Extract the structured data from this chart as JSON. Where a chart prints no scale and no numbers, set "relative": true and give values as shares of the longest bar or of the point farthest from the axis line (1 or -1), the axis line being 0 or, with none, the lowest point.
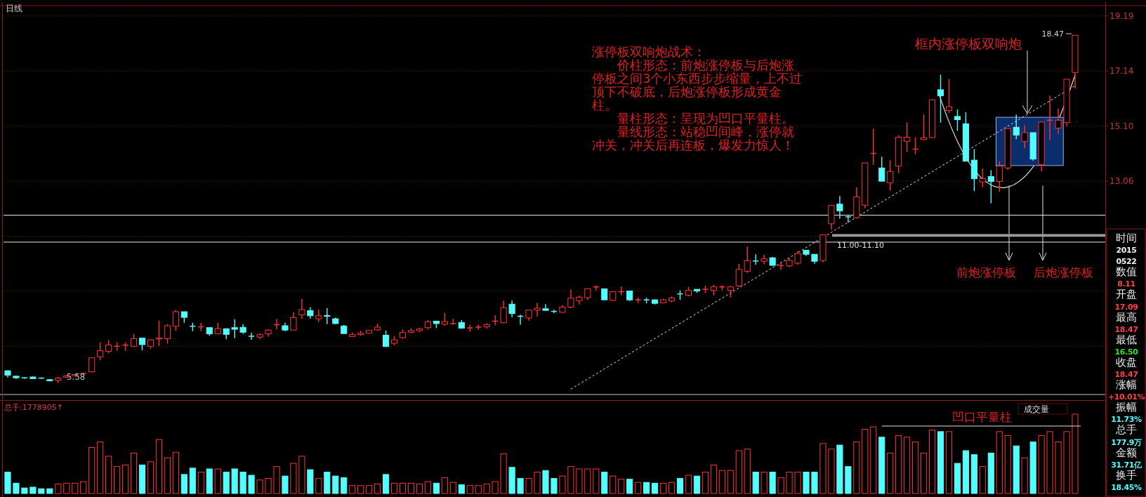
{
  "chart_data": [
    {
      "type": "candlestick",
      "title": "日线",
      "categories": [
        null,
        null,
        null,
        null,
        null,
        null,
        null,
        null,
        null,
        null,
        null,
        null,
        null,
        null,
        null,
        null,
        null,
        null,
        null,
        null,
        null,
        null,
        null,
        null,
        null,
        null,
        null,
        null,
        null,
        null,
        null,
        null,
        null,
        null,
        null,
        null,
        null,
        null,
        null,
        null,
        null,
        null,
        null,
        null,
        null,
        null,
        null,
        null,
        null,
        null,
        null,
        null,
        null,
        null,
        null,
        null,
        null,
        null,
        null,
        null,
        null,
        null,
        null,
        null,
        null,
        null,
        null,
        null,
        null,
        null,
        null,
        null,
        null,
        null,
        null,
        null,
        null,
        null,
        null,
        null,
        null,
        null,
        null,
        null,
        null,
        null,
        null,
        null,
        null,
        null,
        null,
        null,
        null,
        null,
        null,
        null,
        null,
        null,
        null,
        null,
        null,
        null,
        null,
        null,
        null,
        null,
        null,
        null,
        null,
        null,
        null,
        null,
        null,
        null,
        null,
        null,
        null,
        null,
        null,
        null,
        null,
        null,
        null,
        null,
        null,
        null,
        null,
        null
      ],
      "ohlc": [
        [
          6.03,
          6.05,
          5.78,
          5.87
        ],
        [
          5.83,
          5.84,
          5.73,
          5.77
        ],
        [
          5.77,
          5.79,
          5.73,
          5.76
        ],
        [
          5.8,
          5.82,
          5.72,
          5.74
        ],
        [
          5.76,
          5.77,
          5.72,
          5.74
        ],
        [
          5.7,
          5.72,
          5.64,
          5.66
        ],
        [
          5.68,
          5.8,
          5.58,
          5.76
        ],
        [
          5.79,
          5.87,
          5.77,
          5.84
        ],
        [
          5.85,
          5.91,
          5.84,
          5.89
        ],
        [
          5.92,
          5.96,
          5.88,
          5.93
        ],
        [
          5.99,
          6.51,
          5.97,
          6.51
        ],
        [
          6.55,
          7.09,
          6.42,
          6.77
        ],
        [
          6.75,
          7.17,
          6.68,
          6.99
        ],
        [
          6.93,
          7.09,
          6.77,
          6.94
        ],
        [
          6.97,
          7.09,
          6.77,
          6.98
        ],
        [
          6.94,
          7.4,
          6.9,
          7.22
        ],
        [
          7.24,
          7.26,
          6.79,
          7.0
        ],
        [
          6.94,
          7.2,
          6.85,
          7.18
        ],
        [
          7.21,
          7.89,
          6.95,
          7.24
        ],
        [
          7.22,
          7.76,
          7.04,
          7.7
        ],
        [
          7.68,
          8.29,
          7.51,
          8.22
        ],
        [
          8.22,
          8.22,
          7.81,
          8.01
        ],
        [
          7.68,
          7.81,
          7.5,
          7.66
        ],
        [
          7.64,
          7.81,
          7.5,
          7.66
        ],
        [
          7.63,
          7.63,
          7.33,
          7.4
        ],
        [
          7.4,
          7.81,
          7.38,
          7.59
        ],
        [
          7.59,
          7.59,
          7.2,
          7.38
        ],
        [
          7.63,
          7.94,
          7.24,
          7.57
        ],
        [
          7.64,
          7.76,
          7.4,
          7.46
        ],
        [
          7.31,
          7.44,
          7.18,
          7.29
        ],
        [
          7.28,
          7.42,
          7.2,
          7.37
        ],
        [
          7.4,
          7.55,
          7.29,
          7.54
        ],
        [
          7.72,
          7.95,
          7.57,
          7.74
        ],
        [
          7.7,
          7.81,
          7.5,
          7.54
        ],
        [
          7.54,
          8.2,
          7.52,
          8.0
        ],
        [
          8.11,
          8.69,
          7.96,
          8.3
        ],
        [
          8.26,
          8.39,
          7.96,
          8.07
        ],
        [
          7.96,
          8.29,
          7.84,
          8.07
        ],
        [
          8.08,
          8.35,
          7.76,
          8.05
        ],
        [
          7.96,
          8.0,
          7.76,
          7.78
        ],
        [
          7.69,
          7.73,
          7.41,
          7.41
        ],
        [
          7.3,
          7.45,
          7.29,
          7.37
        ],
        [
          7.37,
          7.51,
          7.33,
          7.42
        ],
        [
          7.43,
          7.54,
          7.41,
          7.53
        ],
        [
          7.55,
          7.78,
          7.52,
          7.65
        ],
        [
          7.35,
          7.52,
          6.91,
          6.93
        ],
        [
          7.05,
          7.31,
          6.98,
          7.18
        ],
        [
          7.26,
          7.56,
          7.22,
          7.45
        ],
        [
          7.46,
          7.61,
          7.42,
          7.52
        ],
        [
          7.52,
          7.63,
          7.46,
          7.58
        ],
        [
          7.63,
          7.91,
          7.56,
          7.85
        ],
        [
          7.87,
          7.87,
          7.61,
          7.78
        ],
        [
          7.76,
          8.17,
          7.7,
          7.85
        ],
        [
          7.77,
          7.96,
          7.74,
          7.78
        ],
        [
          7.82,
          7.91,
          7.59,
          7.61
        ],
        [
          7.6,
          7.74,
          7.48,
          7.62
        ],
        [
          7.64,
          7.74,
          7.55,
          7.65
        ],
        [
          7.66,
          7.8,
          7.59,
          7.74
        ],
        [
          7.85,
          8.09,
          7.72,
          7.87
        ],
        [
          7.81,
          8.63,
          7.79,
          8.37
        ],
        [
          8.5,
          8.63,
          8.02,
          8.15
        ],
        [
          8.05,
          8.11,
          7.74,
          8.04
        ],
        [
          7.99,
          8.28,
          7.89,
          8.28
        ],
        [
          8.28,
          8.55,
          8.04,
          8.35
        ],
        [
          8.33,
          8.5,
          8.26,
          8.27
        ],
        [
          8.23,
          8.29,
          8.17,
          8.22
        ],
        [
          8.2,
          8.46,
          8.18,
          8.39
        ],
        [
          8.39,
          9.04,
          8.35,
          8.72
        ],
        [
          8.63,
          8.82,
          8.49,
          8.76
        ],
        [
          8.74,
          9.07,
          8.66,
          9.07
        ],
        [
          9.13,
          9.2,
          9.01,
          9.14
        ],
        [
          9.07,
          9.07,
          8.66,
          8.66
        ],
        [
          8.64,
          8.96,
          8.62,
          8.96
        ],
        [
          8.94,
          9.16,
          8.83,
          8.96
        ],
        [
          8.99,
          9.0,
          8.62,
          8.66
        ],
        [
          8.65,
          8.74,
          8.53,
          8.66
        ],
        [
          8.66,
          8.74,
          8.53,
          8.65
        ],
        [
          8.66,
          8.68,
          8.49,
          8.53
        ],
        [
          8.55,
          8.7,
          8.53,
          8.66
        ],
        [
          8.62,
          8.79,
          8.57,
          8.73
        ],
        [
          8.88,
          9.01,
          8.66,
          8.86
        ],
        [
          8.83,
          9.14,
          8.79,
          9.01
        ],
        [
          9.05,
          9.05,
          8.92,
          8.99
        ],
        [
          9.04,
          9.18,
          8.92,
          9.05
        ],
        [
          9.01,
          9.22,
          8.83,
          9.14
        ],
        [
          9.13,
          9.2,
          9.01,
          9.14
        ],
        [
          9.01,
          9.18,
          8.75,
          9.14
        ],
        [
          9.18,
          10.0,
          9.14,
          9.79
        ],
        [
          9.72,
          10.64,
          9.66,
          10.11
        ],
        [
          10.1,
          10.35,
          9.96,
          10.08
        ],
        [
          10.09,
          10.33,
          9.98,
          10.18
        ],
        [
          10.22,
          10.25,
          9.92,
          9.94
        ],
        [
          9.92,
          10.05,
          9.77,
          9.93
        ],
        [
          9.92,
          10.22,
          9.87,
          10.12
        ],
        [
          10.02,
          10.46,
          9.96,
          10.38
        ],
        [
          10.5,
          10.5,
          10.29,
          10.35
        ],
        [
          10.35,
          10.35,
          10.0,
          10.09
        ],
        [
          10.12,
          11.07,
          10.05,
          11.07
        ],
        [
          11.48,
          12.16,
          11.26,
          12.16
        ],
        [
          12.21,
          12.51,
          11.67,
          11.96
        ],
        [
          11.74,
          11.8,
          11.52,
          11.73
        ],
        [
          11.71,
          12.83,
          11.67,
          12.48
        ],
        [
          12.17,
          13.74,
          12.06,
          13.74
        ],
        [
          14.08,
          15.01,
          13.67,
          14.09
        ],
        [
          13.55,
          13.97,
          13.06,
          13.06
        ],
        [
          13.0,
          13.84,
          12.71,
          13.42
        ],
        [
          13.62,
          14.77,
          13.36,
          14.69
        ],
        [
          14.54,
          15.23,
          14.14,
          14.69
        ],
        [
          14.24,
          14.69,
          14.06,
          14.25
        ],
        [
          14.6,
          15.53,
          14.58,
          14.67
        ],
        [
          14.68,
          16.1,
          14.67,
          16.08
        ],
        [
          16.45,
          17.01,
          15.23,
          16.23
        ],
        [
          15.68,
          16.85,
          15.58,
          15.82
        ],
        [
          15.46,
          15.72,
          14.93,
          15.34
        ],
        [
          15.19,
          15.62,
          13.8,
          13.8
        ],
        [
          13.84,
          14.25,
          12.69,
          13.15
        ],
        [
          13.03,
          13.54,
          12.84,
          13.16
        ],
        [
          13.23,
          13.47,
          12.24,
          13.05
        ],
        [
          13.05,
          13.8,
          12.67,
          13.62
        ],
        [
          13.55,
          15.01,
          13.47,
          15.01
        ],
        [
          15.06,
          15.53,
          14.62,
          14.77
        ],
        [
          14.54,
          15.14,
          14.28,
          14.86
        ],
        [
          14.86,
          14.86,
          13.82,
          13.88
        ],
        [
          13.68,
          15.25,
          13.42,
          15.25
        ],
        [
          15.31,
          16.23,
          14.58,
          15.32
        ],
        [
          15.03,
          15.75,
          14.81,
          15.32
        ],
        [
          15.23,
          16.84,
          15.1,
          16.84
        ],
        [
          17.09,
          18.47,
          16.5,
          18.47
        ]
      ],
      "colors": [
        "#54fcfc",
        "#54fcfc",
        "#54fcfc",
        "#54fcfc",
        "#54fcfc",
        "#54fcfc",
        "#ff3232",
        "#ff3232",
        "#ff3232",
        "#ff3232",
        "#ff3232",
        "#ff3232",
        "#ff3232",
        "#ff3232",
        "#ff3232",
        "#ff3232",
        "#54fcfc",
        "#ff3232",
        "#ff3232",
        "#ff3232",
        "#ff3232",
        "#54fcfc",
        "#54fcfc",
        "#ff3232",
        "#54fcfc",
        "#ff3232",
        "#54fcfc",
        "#54fcfc",
        "#54fcfc",
        "#54fcfc",
        "#ff3232",
        "#ff3232",
        "#ff3232",
        "#54fcfc",
        "#ff3232",
        "#ff3232",
        "#54fcfc",
        "#ff3232",
        "#54fcfc",
        "#54fcfc",
        "#54fcfc",
        "#ff3232",
        "#ff3232",
        "#ff3232",
        "#ff3232",
        "#54fcfc",
        "#ff3232",
        "#ff3232",
        "#ff3232",
        "#ff3232",
        "#ff3232",
        "#54fcfc",
        "#ff3232",
        "#ff3232",
        "#54fcfc",
        "#ff3232",
        "#ff3232",
        "#ff3232",
        "#ff3232",
        "#ff3232",
        "#54fcfc",
        "#54fcfc",
        "#ff3232",
        "#ff3232",
        "#54fcfc",
        "#54fcfc",
        "#ff3232",
        "#ff3232",
        "#ff3232",
        "#ff3232",
        "#ff3232",
        "#54fcfc",
        "#ff3232",
        "#ff3232",
        "#54fcfc",
        "#ff3232",
        "#54fcfc",
        "#54fcfc",
        "#ff3232",
        "#ff3232",
        "#54fcfc",
        "#ff3232",
        "#54fcfc",
        "#ff3232",
        "#ff3232",
        "#ff3232",
        "#ff3232",
        "#ff3232",
        "#ff3232",
        "#54fcfc",
        "#ff3232",
        "#54fcfc",
        "#ff3232",
        "#ff3232",
        "#ff3232",
        "#54fcfc",
        "#54fcfc",
        "#ff3232",
        "#ff3232",
        "#54fcfc",
        "#54fcfc",
        "#ff3232",
        "#ff3232",
        "#ff3232",
        "#54fcfc",
        "#ff3232",
        "#ff3232",
        "#ff3232",
        "#ff3232",
        "#ff3232",
        "#ff3232",
        "#54fcfc",
        "#ff3232",
        "#54fcfc",
        "#54fcfc",
        "#54fcfc",
        "#ff3232",
        "#54fcfc",
        "#ff3232",
        "#ff3232",
        "#54fcfc",
        "#ff3232",
        "#54fcfc",
        "#ff3232",
        "#ff3232",
        "#ff3232",
        "#ff3232",
        "#ff3232"
      ],
      "ylim": [
        5.15,
        19.57
      ],
      "yticks": [
        19.19,
        17.14,
        {
          "value": 15.1,
          "label": "15.10"
        },
        13.06,
        {
          "value": 11.02,
          "label": null
        },
        {
          "value": 8.98,
          "label": null
        },
        {
          "value": 6.94,
          "label": null
        }
      ],
      "grid": "y",
      "ref_lines": [
        {
          "axis": "y",
          "value": 11.8,
          "color": "#e8e8e8"
        },
        {
          "axis": "y",
          "value": 10.8,
          "color": "#e8e8e8"
        }
      ],
      "bands": [
        {
          "axis": "y",
          "from": 11.0,
          "to": 11.1,
          "label": "11.00-11.10",
          "color": "#9a9a9a"
        }
      ],
      "annotations": [
        "涨停板双响炮战术：",
        "价柱形态：前炮涨停板与后炮涨停板之间3个小东西步步缩量，上不过顶下不破底，后炮涨停板形成黄金柱。",
        "量柱形态：呈现为凹口平量柱。",
        "量线形态：站稳凹间峰，涨停就冲关，冲关后再连板，爆发力惊人！",
        "框内涨停板双响炮",
        "前炮涨停板",
        "后炮涨停板",
        "18.47",
        "5.58"
      ],
      "series": [
        {
          "type": "line",
          "line_style": "dashed",
          "color": "#e0e0e0",
          "values": [
            null,
            null,
            null,
            null,
            null,
            null,
            null,
            null,
            null,
            null,
            null,
            null,
            null,
            null,
            null,
            null,
            null,
            null,
            null,
            null,
            null,
            null,
            null,
            null,
            null,
            null,
            null,
            null,
            null,
            null,
            null,
            null,
            null,
            null,
            null,
            null,
            null,
            null,
            null,
            null,
            null,
            null,
            null,
            null,
            null,
            null,
            null,
            null,
            null,
            null,
            null,
            null,
            null,
            null,
            null,
            null,
            null,
            null,
            null,
            null,
            null,
            null,
            null,
            null,
            null,
            null,
            null,
            5.35,
            null,
            null,
            null,
            null,
            null,
            null,
            null,
            null,
            null,
            null,
            null,
            null,
            null,
            null,
            null,
            null,
            null,
            null,
            null,
            null,
            null,
            null,
            null,
            null,
            null,
            null,
            null,
            null,
            null,
            null,
            null,
            null,
            null,
            null,
            null,
            null,
            null,
            null,
            null,
            null,
            null,
            null,
            null,
            null,
            null,
            null,
            null,
            null,
            null,
            null,
            null,
            null,
            null,
            null,
            null,
            null,
            null,
            null,
            null,
            16.6
          ]
        }
      ]
    },
    {
      "type": "bar",
      "relative": true,
      "title": "总手:1778905↑",
      "categories": [
        null,
        null,
        null,
        null,
        null,
        null,
        null,
        null,
        null,
        null,
        null,
        null,
        null,
        null,
        null,
        null,
        null,
        null,
        null,
        null,
        null,
        null,
        null,
        null,
        null,
        null,
        null,
        null,
        null,
        null,
        null,
        null,
        null,
        null,
        null,
        null,
        null,
        null,
        null,
        null,
        null,
        null,
        null,
        null,
        null,
        null,
        null,
        null,
        null,
        null,
        null,
        null,
        null,
        null,
        null,
        null,
        null,
        null,
        null,
        null,
        null,
        null,
        null,
        null,
        null,
        null,
        null,
        null,
        null,
        null,
        null,
        null,
        null,
        null,
        null,
        null,
        null,
        null,
        null,
        null,
        null,
        null,
        null,
        null,
        null,
        null,
        null,
        null,
        null,
        null,
        null,
        null,
        null,
        null,
        null,
        null,
        null,
        null,
        null,
        null,
        null,
        null,
        null,
        null,
        null,
        null,
        null,
        null,
        null,
        null,
        null,
        null,
        null,
        null,
        null,
        null,
        null,
        null,
        null,
        null,
        null,
        null,
        null,
        null,
        null,
        null,
        null,
        null
      ],
      "values": [
        0.27,
        0.13,
        0.07,
        0.08,
        0.06,
        0.06,
        0.12,
        0.13,
        0.13,
        0.15,
        0.58,
        0.65,
        0.47,
        0.34,
        0.36,
        0.51,
        0.36,
        0.4,
        0.68,
        0.45,
        0.52,
        0.24,
        0.32,
        0.27,
        0.31,
        0.31,
        0.27,
        0.31,
        0.27,
        0.23,
        0.17,
        0.19,
        0.34,
        0.22,
        0.38,
        0.47,
        0.3,
        0.19,
        0.27,
        0.22,
        0.2,
        0.1,
        0.1,
        0.1,
        0.12,
        0.24,
        0.13,
        0.13,
        0.13,
        0.12,
        0.15,
        0.13,
        0.2,
        0.14,
        0.11,
        0.1,
        0.1,
        0.12,
        0.15,
        0.5,
        0.33,
        0.19,
        0.19,
        0.27,
        0.29,
        0.19,
        0.22,
        0.34,
        0.31,
        0.31,
        0.31,
        0.27,
        0.22,
        0.18,
        0.18,
        0.14,
        0.14,
        0.13,
        0.13,
        0.14,
        0.19,
        0.23,
        0.22,
        0.27,
        0.36,
        0.29,
        0.29,
        0.54,
        0.56,
        0.27,
        0.27,
        0.27,
        0.2,
        0.27,
        0.27,
        0.27,
        0.27,
        0.63,
        0.56,
        0.61,
        0.34,
        0.65,
        0.81,
        0.84,
        0.71,
        0.51,
        0.73,
        0.71,
        0.65,
        0.51,
        0.8,
        0.78,
        0.78,
        0.38,
        0.54,
        0.49,
        0.34,
        0.51,
        0.78,
        0.73,
        0.6,
        0.45,
        0.65,
        0.73,
        0.78,
        0.65,
        0.78,
        1
      ],
      "colors": [
        "#54fcfc",
        "#54fcfc",
        "#54fcfc",
        "#54fcfc",
        "#54fcfc",
        "#54fcfc",
        "#ff3232",
        "#ff3232",
        "#ff3232",
        "#ff3232",
        "#ff3232",
        "#ff3232",
        "#ff3232",
        "#ff3232",
        "#ff3232",
        "#ff3232",
        "#54fcfc",
        "#ff3232",
        "#ff3232",
        "#ff3232",
        "#ff3232",
        "#54fcfc",
        "#54fcfc",
        "#ff3232",
        "#54fcfc",
        "#ff3232",
        "#54fcfc",
        "#54fcfc",
        "#54fcfc",
        "#54fcfc",
        "#ff3232",
        "#ff3232",
        "#ff3232",
        "#54fcfc",
        "#ff3232",
        "#ff3232",
        "#54fcfc",
        "#ff3232",
        "#54fcfc",
        "#54fcfc",
        "#54fcfc",
        "#ff3232",
        "#ff3232",
        "#ff3232",
        "#ff3232",
        "#54fcfc",
        "#ff3232",
        "#ff3232",
        "#ff3232",
        "#ff3232",
        "#ff3232",
        "#54fcfc",
        "#ff3232",
        "#ff3232",
        "#54fcfc",
        "#ff3232",
        "#ff3232",
        "#ff3232",
        "#ff3232",
        "#ff3232",
        "#54fcfc",
        "#54fcfc",
        "#ff3232",
        "#ff3232",
        "#54fcfc",
        "#54fcfc",
        "#ff3232",
        "#ff3232",
        "#ff3232",
        "#ff3232",
        "#ff3232",
        "#54fcfc",
        "#ff3232",
        "#ff3232",
        "#54fcfc",
        "#ff3232",
        "#54fcfc",
        "#54fcfc",
        "#ff3232",
        "#ff3232",
        "#54fcfc",
        "#ff3232",
        "#54fcfc",
        "#ff3232",
        "#ff3232",
        "#ff3232",
        "#ff3232",
        "#ff3232",
        "#ff3232",
        "#54fcfc",
        "#ff3232",
        "#54fcfc",
        "#ff3232",
        "#ff3232",
        "#ff3232",
        "#54fcfc",
        "#54fcfc",
        "#ff3232",
        "#ff3232",
        "#54fcfc",
        "#54fcfc",
        "#ff3232",
        "#ff3232",
        "#ff3232",
        "#54fcfc",
        "#ff3232",
        "#ff3232",
        "#ff3232",
        "#ff3232",
        "#ff3232",
        "#ff3232",
        "#54fcfc",
        "#ff3232",
        "#54fcfc",
        "#54fcfc",
        "#54fcfc",
        "#ff3232",
        "#54fcfc",
        "#ff3232",
        "#ff3232",
        "#54fcfc",
        "#ff3232",
        "#54fcfc",
        "#ff3232",
        "#ff3232",
        "#ff3232",
        "#ff3232",
        "#ff3232"
      ],
      "ref_lines": [
        {
          "axis": "y",
          "value": 0.85,
          "color": "#e0e0e0"
        }
      ],
      "annotations": [
        "凹口平量柱",
        "成交量"
      ]
    },
    {
      "type": "other",
      "annotations": [
        "时间",
        "2015",
        "0522",
        "数值",
        "8.11",
        "开盘",
        "17.09",
        "最高",
        "18.47",
        "最低",
        "16.50",
        "收盘",
        "18.47",
        "涨幅",
        "+10.01%",
        "振幅",
        "11.73%",
        "总手",
        "177.9万",
        "金额",
        "31.71亿",
        "换手",
        "18.45%"
      ]
    }
  ]
}
